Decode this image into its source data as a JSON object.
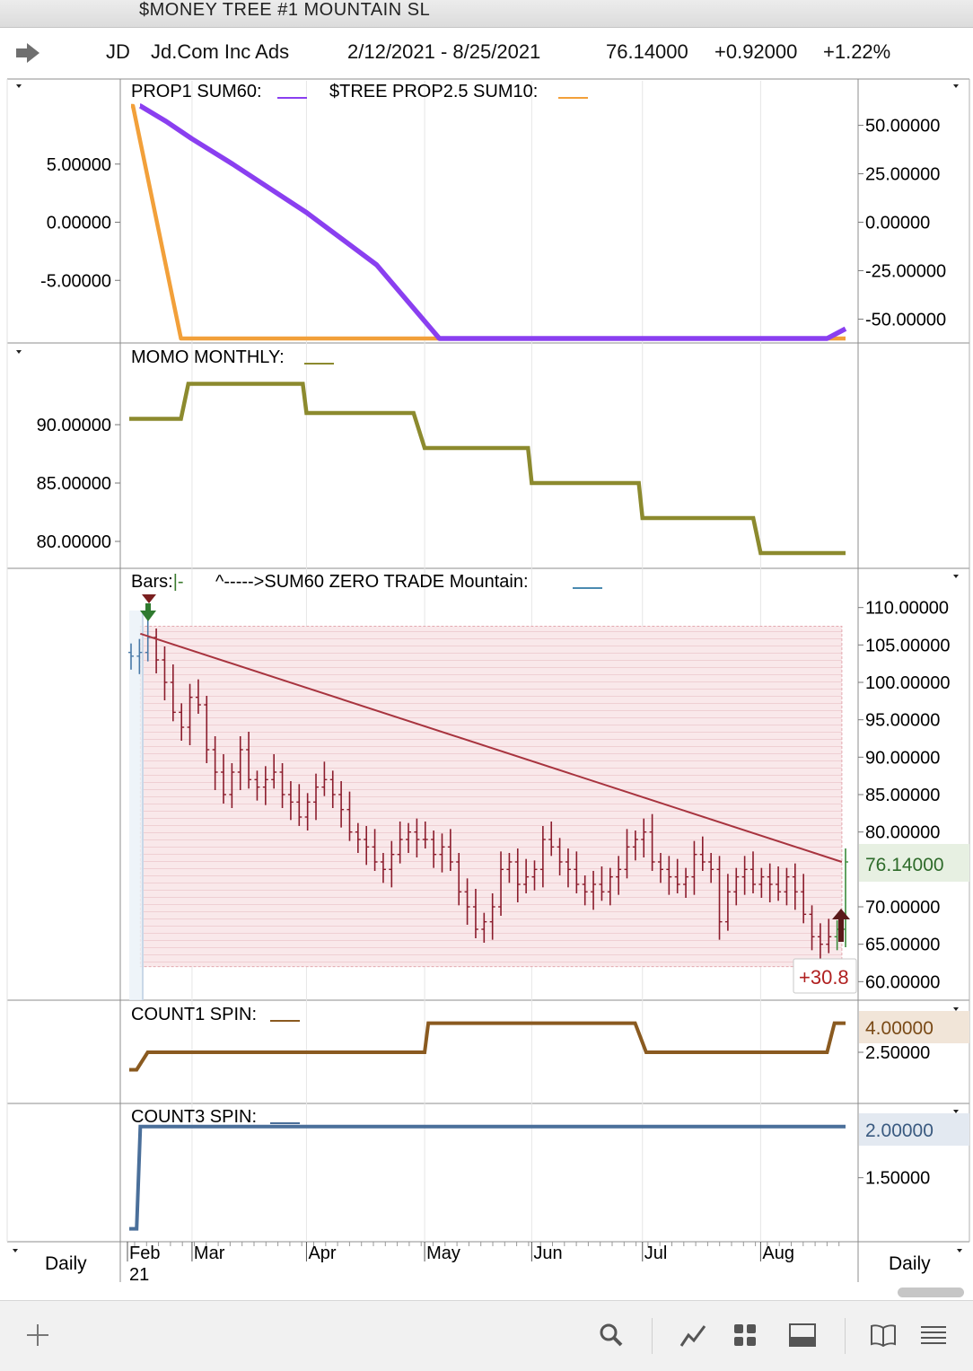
{
  "window": {
    "title": "$MONEY TREE #1 MOUNTAIN SL"
  },
  "header": {
    "arrow_icon": "right-arrow-icon",
    "symbol": "JD",
    "name": "Jd.Com Inc Ads",
    "range": "2/12/2021 - 8/25/2021",
    "last": "76.14000",
    "change": "+0.92000",
    "change_pct": "+1.22%"
  },
  "panels": {
    "prop": {
      "label": "PROP1 SUM60:",
      "legend2": "$TREE PROP2.5 SUM10:"
    },
    "momo": {
      "label": "MOMO MONTHLY:"
    },
    "price": {
      "bars_label": "Bars:",
      "bars_glyph": "|-",
      "trade_label": "^----->SUM60 ZERO TRADE  Mountain:"
    },
    "count1": {
      "label": "COUNT1 SPIN:"
    },
    "count3": {
      "label": "COUNT3 SPIN:"
    }
  },
  "footer": {
    "left_period": "Daily",
    "right_period": "Daily",
    "icons": [
      "plus-icon",
      "search-icon",
      "line-chart-icon",
      "grid-icon",
      "panel-icon",
      "book-icon",
      "menu-icon"
    ]
  },
  "colors": {
    "purple": "#8a3ff0",
    "orange": "#f2a03a",
    "olive": "#8c8a2e",
    "bar": "#8b1c2c",
    "trendline": "#a8343f",
    "brown": "#8a5a20",
    "steel": "#4a6f9a",
    "mountain": "#f8e6e8"
  },
  "chart_data": [
    {
      "type": "line",
      "title": "PROP1 SUM60 / $TREE PROP2.5 SUM10",
      "x_dates": [
        "2021-02-12",
        "2021-02-26",
        "2021-03-31",
        "2021-05-07",
        "2021-08-22",
        "2021-08-25"
      ],
      "series": [
        {
          "name": "PROP1 SUM60",
          "axis": "right",
          "x": [
            "2021-02-12",
            "2021-02-15",
            "2021-02-22",
            "2021-03-01",
            "2021-03-12",
            "2021-04-01",
            "2021-04-20",
            "2021-05-07",
            "2021-08-20",
            "2021-08-25"
          ],
          "values": [
            60,
            60,
            52,
            43,
            30,
            5,
            -22,
            -60,
            -60,
            -55
          ]
        },
        {
          "name": "$TREE PROP2.5 SUM10",
          "axis": "left",
          "x": [
            "2021-02-12",
            "2021-02-13",
            "2021-02-26",
            "2021-08-25"
          ],
          "values": [
            10,
            10,
            -10,
            -10
          ]
        }
      ],
      "yleft_ticks": [
        "5.00000",
        "0.00000",
        "-5.00000"
      ],
      "yleft_range": [
        -10,
        10
      ],
      "yright_ticks": [
        "50.00000",
        "25.00000",
        "0.00000",
        "-25.00000",
        "-50.00000"
      ],
      "yright_range": [
        -60,
        60
      ]
    },
    {
      "type": "line",
      "title": "MOMO MONTHLY",
      "x": [
        "2021-02-12",
        "2021-02-26",
        "2021-02-28",
        "2021-03-31",
        "2021-04-01",
        "2021-04-30",
        "2021-05-03",
        "2021-05-31",
        "2021-06-01",
        "2021-06-30",
        "2021-07-01",
        "2021-07-31",
        "2021-08-02",
        "2021-08-25"
      ],
      "values": [
        90.5,
        90.5,
        93.5,
        93.5,
        91,
        91,
        88,
        88,
        85,
        85,
        82,
        82,
        79,
        79
      ],
      "yticks": [
        "90.00000",
        "85.00000",
        "80.00000"
      ],
      "yrange": [
        78,
        96
      ]
    },
    {
      "type": "bar",
      "subtype": "ohlc",
      "title": "Bars / SUM60 ZERO TRADE / Mountain",
      "closes": [
        103.5,
        104,
        106,
        103,
        100,
        96,
        94,
        98,
        97,
        91,
        88,
        85,
        88,
        91,
        87,
        86,
        87,
        88,
        85,
        84,
        82,
        84,
        86,
        87,
        85,
        83,
        80,
        79,
        78,
        76,
        75,
        77,
        79,
        80,
        79,
        79,
        77,
        78,
        76,
        72,
        70,
        67,
        68,
        70,
        75,
        76,
        73,
        74,
        75,
        79,
        78,
        76,
        75,
        73,
        72,
        73,
        72,
        74,
        75,
        78,
        79,
        80,
        76,
        75,
        74,
        73,
        74,
        77,
        76,
        75,
        68,
        72,
        74,
        75,
        73,
        74,
        73,
        72,
        74,
        72,
        69,
        66,
        65,
        66,
        67,
        76
      ],
      "trendline": {
        "start": [
          "2021-02-15",
          106.5
        ],
        "end": [
          "2021-08-24",
          76.0
        ]
      },
      "mountain": {
        "top": 107.5,
        "bottom": 62.0,
        "start": "2021-02-15",
        "end": "2021-08-24"
      },
      "entry_marker": "down-arrow at Feb 15",
      "exit_marker": "up-arrow at Aug 24",
      "trade_result": "+30.8",
      "last_price": "76.14000",
      "yticks": [
        "110.00000",
        "105.00000",
        "100.00000",
        "95.00000",
        "90.00000",
        "85.00000",
        "80.00000",
        "70.00000",
        "65.00000",
        "60.00000"
      ],
      "yrange": [
        58,
        112
      ]
    },
    {
      "type": "line",
      "title": "COUNT1 SPIN",
      "x": [
        "2021-02-12",
        "2021-02-14",
        "2021-02-17",
        "2021-05-03",
        "2021-05-04",
        "2021-06-29",
        "2021-07-02",
        "2021-08-20",
        "2021-08-22",
        "2021-08-25"
      ],
      "values": [
        1.6,
        1.6,
        2.5,
        2.5,
        4.0,
        4.0,
        2.5,
        2.5,
        4.0,
        4.0
      ],
      "last_value": "4.00000",
      "yticks": [
        "2.50000"
      ],
      "yrange": [
        0,
        5
      ]
    },
    {
      "type": "line",
      "title": "COUNT3 SPIN",
      "x": [
        "2021-02-12",
        "2021-02-14",
        "2021-02-15",
        "2021-08-25"
      ],
      "values": [
        1.0,
        1.0,
        2.0,
        2.0
      ],
      "last_value": "2.00000",
      "yticks": [
        "1.50000"
      ],
      "yrange": [
        0.9,
        2.2
      ]
    }
  ],
  "x_axis": {
    "months": [
      "Feb",
      "Mar",
      "Apr",
      "May",
      "Jun",
      "Jul",
      "Aug"
    ],
    "year_label": "21"
  }
}
